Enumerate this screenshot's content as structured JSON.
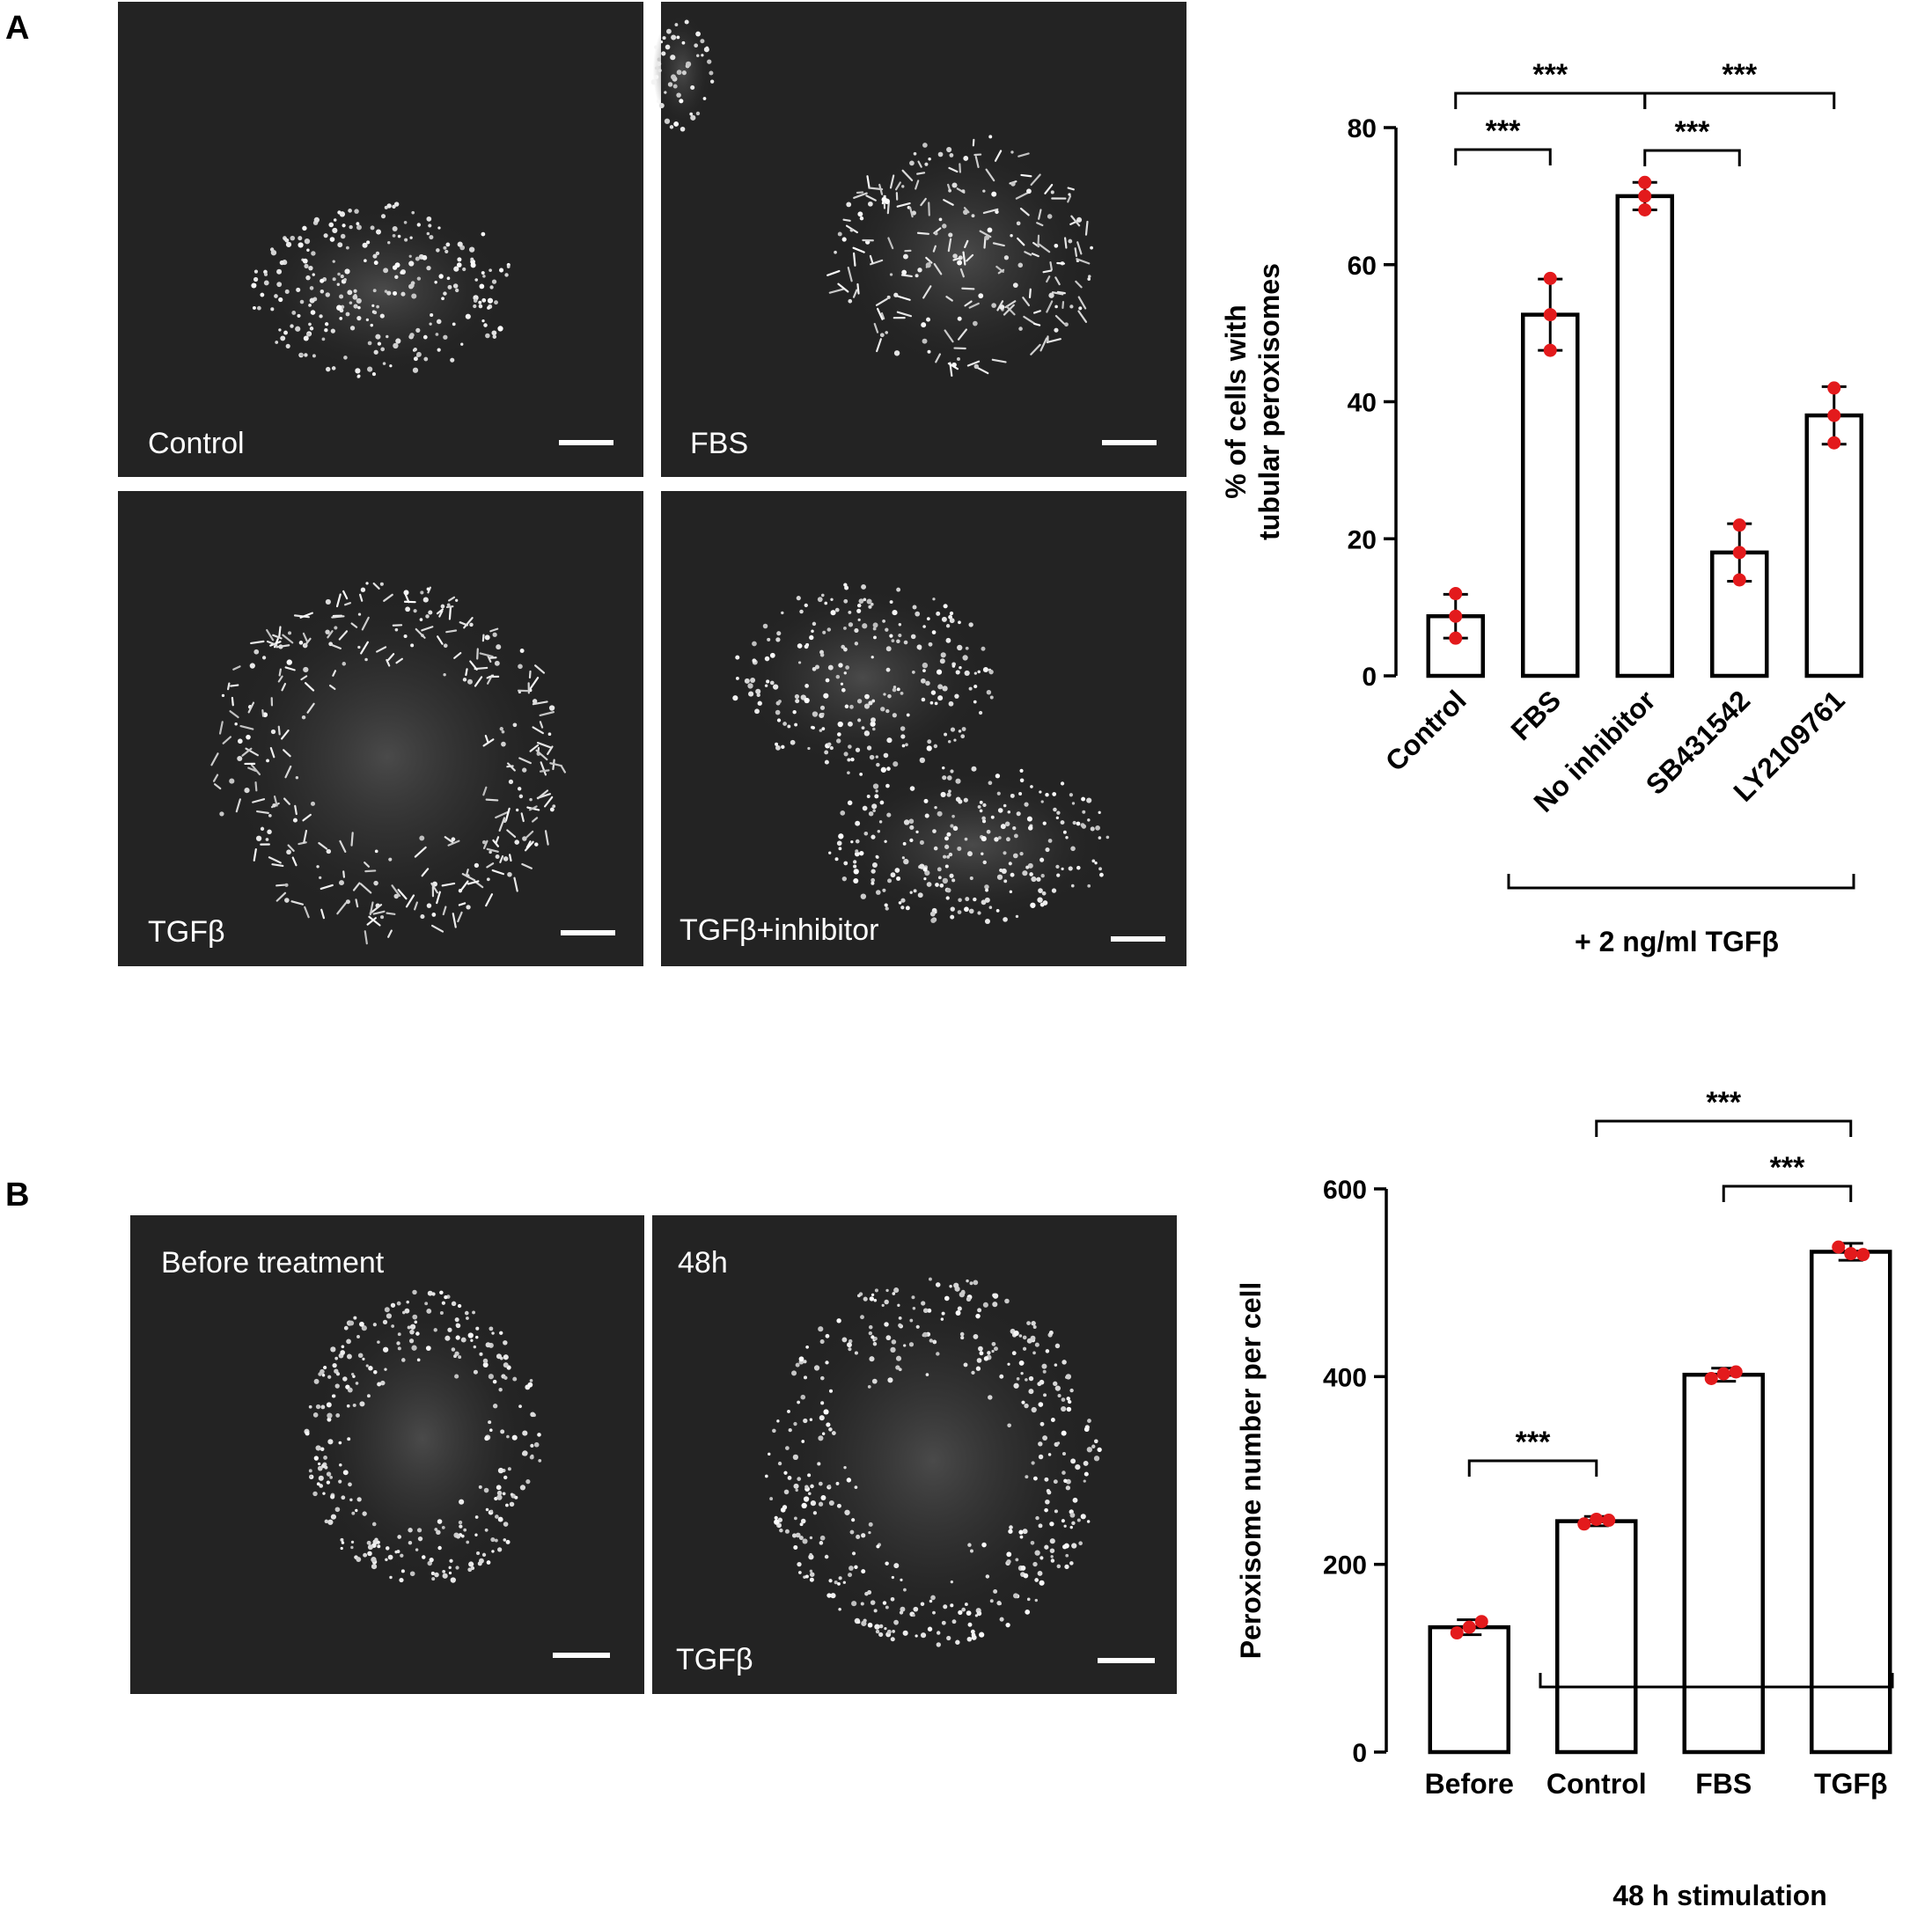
{
  "panel_A": {
    "letter": "A",
    "micrographs": [
      {
        "label": "Control"
      },
      {
        "label": "FBS"
      },
      {
        "label": "TGFβ"
      },
      {
        "label": "TGFβ+inhibitor"
      }
    ],
    "group_label": "+ 2 ng/ml TGFβ",
    "significance": [
      "***",
      "***",
      "***",
      "***"
    ]
  },
  "panel_B": {
    "letter": "B",
    "micrographs": [
      {
        "label": "Before treatment"
      },
      {
        "label": "48h"
      },
      {
        "label": "TGFβ"
      }
    ],
    "group_label": "48 h stimulation",
    "significance": [
      "***",
      "***",
      "***"
    ]
  },
  "chart_data": [
    {
      "type": "bar",
      "panel": "A",
      "title": "",
      "xlabel": "",
      "ylabel": "% of cells with tubular peroxisomes",
      "ylabel_lines": [
        "% of cells with",
        "tubular peroxisomes"
      ],
      "categories": [
        "Control",
        "FBS",
        "No inhibitor",
        "SB431542",
        "LY2109761"
      ],
      "values": [
        8.7,
        52.7,
        70,
        18,
        38
      ],
      "error": [
        3.2,
        5.2,
        2,
        4.2,
        4.2
      ],
      "points": [
        [
          12,
          8.7,
          5.5
        ],
        [
          58,
          52.7,
          47.5
        ],
        [
          72,
          70,
          68
        ],
        [
          22,
          18,
          14
        ],
        [
          42,
          38,
          34
        ]
      ],
      "ylim": [
        0,
        80
      ],
      "yticks": [
        0,
        20,
        40,
        60,
        80
      ],
      "tick_labels": [
        "0",
        "20",
        "40",
        "60",
        "80"
      ],
      "grid": false,
      "point_color": "#e31a1c",
      "comparisons": [
        {
          "from": "Control",
          "to": "FBS",
          "label": "***"
        },
        {
          "from": "No inhibitor",
          "to": "SB431542",
          "label": "***"
        },
        {
          "from": "Control",
          "to": "No inhibitor",
          "label": "***"
        },
        {
          "from": "No inhibitor",
          "to": "LY2109761",
          "label": "***"
        }
      ]
    },
    {
      "type": "bar",
      "panel": "B",
      "title": "",
      "xlabel": "",
      "ylabel": "Peroxisome number per cell",
      "categories": [
        "Before",
        "Control",
        "FBS",
        "TGFβ"
      ],
      "values": [
        133,
        246,
        402,
        533
      ],
      "error": [
        8,
        5,
        7,
        9
      ],
      "points": [
        [
          127,
          139,
          133
        ],
        [
          243,
          247,
          248
        ],
        [
          398,
          405,
          403
        ],
        [
          538,
          530,
          531
        ]
      ],
      "ylim": [
        0,
        600
      ],
      "yticks": [
        0,
        200,
        400,
        600
      ],
      "tick_labels": [
        "0",
        "200",
        "400",
        "600"
      ],
      "grid": false,
      "point_color": "#e31a1c",
      "comparisons": [
        {
          "from": "Before",
          "to": "Control",
          "label": "***"
        },
        {
          "from": "FBS",
          "to": "TGFβ",
          "label": "***"
        },
        {
          "from": "Control",
          "to": "TGFβ",
          "label": "***"
        }
      ]
    }
  ]
}
